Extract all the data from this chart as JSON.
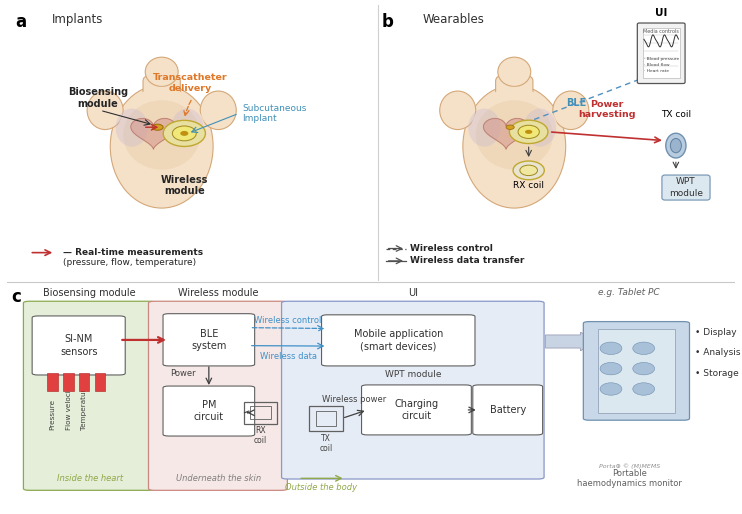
{
  "fig_width": 7.42,
  "fig_height": 5.14,
  "body_skin": "#f5e0c8",
  "body_edge": "#d4a878",
  "body_chest_shade": "#e8cfa8",
  "heart_color": "#d4968c",
  "heart_alpha": 0.55,
  "lung_color": "#c8b8d4",
  "lung_alpha": 0.35,
  "wm_fill": "#e8d878",
  "wm_edge": "#c0a830",
  "panel_a": {
    "label": "a",
    "title": "Implants",
    "bio_label": "Biosensing\nmodule",
    "trans_label": "Transcatheter\ndelivery",
    "trans_color": "#e07828",
    "sub_label": "Subcutaneous\nImplant",
    "sub_color": "#4090b8",
    "wm_label": "Wireless\nmodule",
    "legend_arrow": "Real-time measurements",
    "legend_sub": "(pressure, flow, temperature)",
    "legend_color": "#c03030"
  },
  "panel_b": {
    "label": "b",
    "title": "Wearables",
    "ble_label": "BLE",
    "ble_color": "#4090b8",
    "ui_label": "UI",
    "power_label": "Power\nharvesting",
    "power_color": "#c03030",
    "wpt_label": "WPT\nmodule",
    "rxcoil_label": "RX coil",
    "txcoil_label": "TX coil",
    "leg1": "Wireless control",
    "leg2": "Wireless data transfer"
  },
  "panel_c": {
    "label": "c",
    "green_bg": "#e4eed8",
    "green_edge": "#8aaa50",
    "pink_bg": "#f5e8e6",
    "pink_edge": "#cc8880",
    "blue_bg": "#e6ecf5",
    "blue_edge": "#8898c8",
    "sec_bio": "Biosensing module",
    "sec_wm": "Wireless module",
    "sec_ui": "UI",
    "sec_tab": "e.g. Tablet PC",
    "sub_heart": "Inside the heart",
    "sub_skin": "Underneath the skin",
    "sub_outside": "Outside the body",
    "sub_monitor": "Portable\nhaemodynamics monitor",
    "sinm_label": "SI-NM\nsensors",
    "ble_label": "BLE\nsystem",
    "pm_label": "PM\ncircuit",
    "mob_label": "Mobile application\n(smart devices)",
    "cc_label": "Charging\ncircuit",
    "bat_label": "Battery",
    "wpt_sub": "WPT module",
    "power_txt": "Power",
    "wpower_txt": "Wireless power",
    "wctrl_txt": "Wireless control",
    "wdata_txt": "Wireless data",
    "disp_txt": "Display",
    "anal_txt": "Analysis",
    "stor_txt": "Storage",
    "arrow_color": "#404040",
    "red_arrow": "#c03030",
    "blue_arrow": "#4090c8",
    "green_arrow": "#90a848"
  }
}
